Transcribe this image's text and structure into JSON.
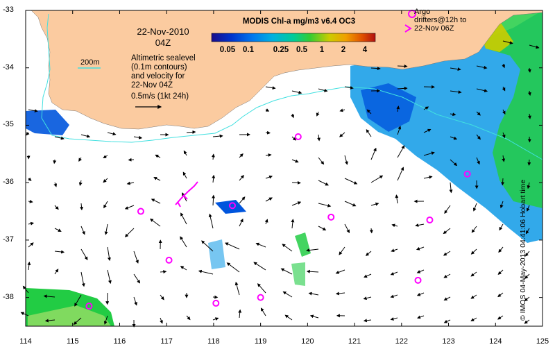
{
  "date": {
    "day": "22-Nov-2010",
    "time": "04Z"
  },
  "altimetry_note": [
    "Altimetric sealevel",
    "(0.1m contours)",
    "and velocity for",
    "22-Nov 04Z"
  ],
  "velocity_scale": "0.5m/s (1kt 24h)",
  "contour_label": "200m",
  "colorbar": {
    "title": "MODIS Chl-a mg/m3 v6.4 OC3",
    "ticks": [
      "0.05",
      "0.1",
      "0.25",
      "0.5",
      "1",
      "2",
      "4"
    ],
    "colors": [
      "#1a0d8a",
      "#0033cc",
      "#0077ee",
      "#00b0e0",
      "#00cc99",
      "#33cc33",
      "#cccc00",
      "#f0a000",
      "#e05000",
      "#b01010"
    ]
  },
  "argo_legend": [
    "Argo",
    "drifters@12h to",
    "22-Nov 06Z"
  ],
  "credit": "© IMOS 04-May-2013 04:41:06 Hobart time",
  "axes": {
    "x_ticks": [
      "114",
      "115",
      "116",
      "117",
      "118",
      "119",
      "120",
      "121",
      "122",
      "123",
      "124",
      "125"
    ],
    "y_ticks": [
      "-33",
      "-34",
      "-35",
      "-36",
      "-37",
      "-38"
    ],
    "xlim": [
      114,
      125
    ],
    "ylim": [
      -38.5,
      -33
    ]
  },
  "colors": {
    "land": "#fbcba0",
    "argo": "#ff00ff",
    "contour": "#40e0e0",
    "chl_low": "#0055dd",
    "chl_mid": "#1ca0e8",
    "chl_high": "#22cc44"
  },
  "argo_floats": [
    {
      "lon": 119.8,
      "lat": -35.2
    },
    {
      "lon": 123.4,
      "lat": -35.85
    },
    {
      "lon": 118.4,
      "lat": -36.4
    },
    {
      "lon": 116.45,
      "lat": -36.5
    },
    {
      "lon": 120.5,
      "lat": -36.6
    },
    {
      "lon": 122.6,
      "lat": -36.65
    },
    {
      "lon": 117.05,
      "lat": -37.35
    },
    {
      "lon": 122.35,
      "lat": -37.7
    },
    {
      "lon": 119.0,
      "lat": -38.0
    },
    {
      "lon": 118.05,
      "lat": -38.1
    },
    {
      "lon": 115.35,
      "lat": -38.15
    }
  ]
}
